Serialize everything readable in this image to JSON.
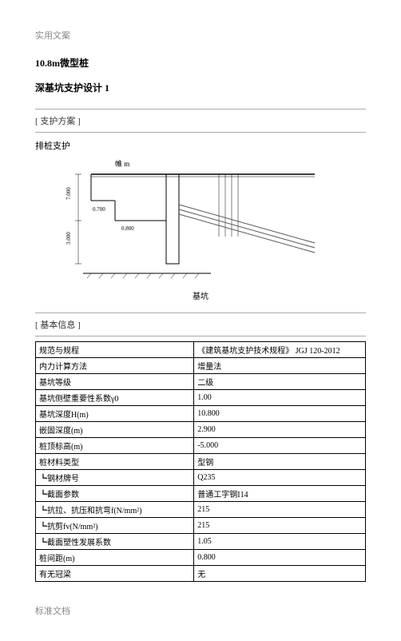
{
  "header": "实用文案",
  "footer": "标准文档",
  "title1": "10.8m微型桩",
  "title2": "深基坑支护设计 1",
  "sec1": "[ 支护方案 ]",
  "sub1": "排桩支护",
  "sec2": "[ 基本信息 ]",
  "basin": "基坑",
  "diagram": {
    "labelM": "帷  m",
    "depth1": "7.000",
    "depth2": "3.000",
    "short1": "0.700",
    "short2": "0.800",
    "bg": "#ffffff",
    "line": "#000000",
    "hatch": "#000000",
    "angle": "#555555"
  },
  "table": [
    [
      "规范与规程",
      "《建筑基坑支护技术规程》 JGJ 120-2012"
    ],
    [
      "内力计算方法",
      "增量法"
    ],
    [
      "基坑等级",
      "二级"
    ],
    [
      "基坑侧壁重要性系数γ0",
      "1.00"
    ],
    [
      "基坑深度H(m)",
      "10.800"
    ],
    [
      "嵌固深度(m)",
      "2.900"
    ],
    [
      "桩顶标高(m)",
      "-5.000"
    ],
    [
      "桩材料类型",
      "型钢"
    ],
    [
      "┗钢材牌号",
      "Q235"
    ],
    [
      "┗截面参数",
      "普通工字钢I14"
    ],
    [
      "┗抗拉、抗压和抗弯f(N/mm²)",
      "215"
    ],
    [
      "┗抗剪fv(N/mm²)",
      "215"
    ],
    [
      "┗截面塑性发展系数",
      "1.05"
    ],
    [
      "桩间距(m)",
      "0.800"
    ],
    [
      "有无冠梁",
      "无"
    ]
  ]
}
